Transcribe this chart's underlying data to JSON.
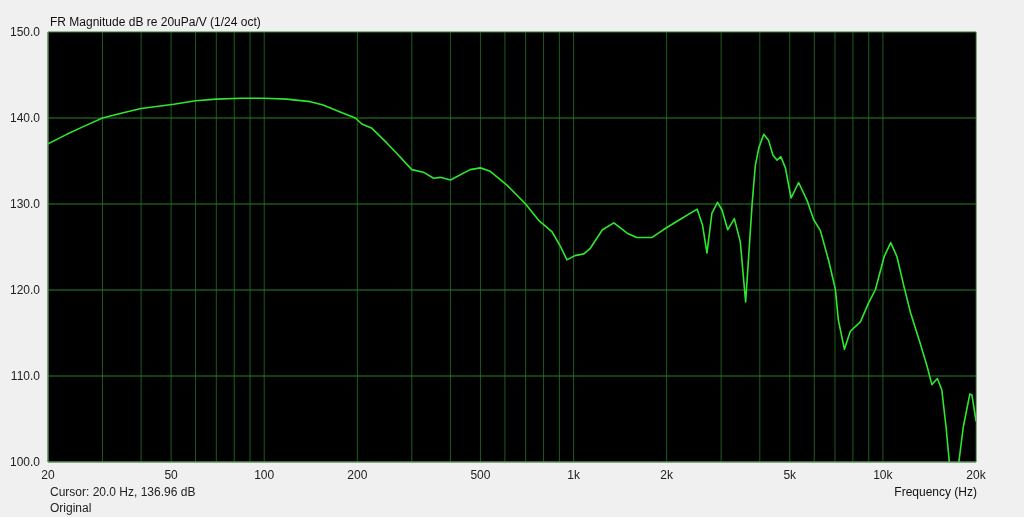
{
  "chart_data": {
    "type": "line",
    "title": "FR Magnitude dB re 20uPa/V (1/24 oct)",
    "xlabel": "Frequency (Hz)",
    "annotations": [
      "Cursor: 20.0 Hz, 136.96 dB",
      "Original"
    ],
    "x": [
      20,
      23,
      26,
      30,
      35,
      40,
      51,
      60,
      70,
      84,
      100,
      118,
      141,
      155,
      176,
      197,
      207,
      223,
      249,
      268,
      300,
      327,
      353,
      371,
      400,
      463,
      500,
      538,
      609,
      700,
      771,
      851,
      906,
      952,
      1010,
      1080,
      1130,
      1240,
      1350,
      1490,
      1600,
      1790,
      1950,
      2160,
      2510,
      2610,
      2700,
      2800,
      2920,
      3020,
      3150,
      3310,
      3460,
      3600,
      3780,
      3870,
      3970,
      4120,
      4270,
      4410,
      4550,
      4680,
      4840,
      5050,
      5340,
      5690,
      5970,
      6280,
      6680,
      7020,
      7180,
      7510,
      7850,
      8460,
      8990,
      9450,
      10100,
      10600,
      11100,
      11700,
      12300,
      13200,
      13900,
      14400,
      15000,
      15500,
      16000,
      16400,
      17000,
      17600,
      18200,
      19100,
      19400,
      20000
    ],
    "series": [
      {
        "color": "#2ee82e",
        "values": [
          137.0,
          138.1,
          139.0,
          140.0,
          140.6,
          141.1,
          141.6,
          142.0,
          142.2,
          142.3,
          142.3,
          142.2,
          141.9,
          141.5,
          140.7,
          140.0,
          139.3,
          138.8,
          137.1,
          135.9,
          134.0,
          133.7,
          133.0,
          133.1,
          132.8,
          134.0,
          134.2,
          133.8,
          132.2,
          130.0,
          128.1,
          126.8,
          125.1,
          123.5,
          124.0,
          124.2,
          124.8,
          127.0,
          127.8,
          126.6,
          126.1,
          126.1,
          127.0,
          128.0,
          129.4,
          127.6,
          124.3,
          128.9,
          130.2,
          129.3,
          127.0,
          128.3,
          125.6,
          118.6,
          130.1,
          134.5,
          136.5,
          138.1,
          137.4,
          135.7,
          135.1,
          135.5,
          134.2,
          130.7,
          132.5,
          130.4,
          128.2,
          126.9,
          123.4,
          120.1,
          116.5,
          113.1,
          115.2,
          116.3,
          118.5,
          120.0,
          123.9,
          125.5,
          123.9,
          120.4,
          117.3,
          113.8,
          111.1,
          109.0,
          109.7,
          108.4,
          104.1,
          100.0,
          null,
          100.0,
          104.1,
          107.9,
          107.8,
          104.8
        ]
      }
    ],
    "xlim": [
      20,
      20000
    ],
    "ylim": [
      100,
      150
    ],
    "xticks": [
      20,
      {
        "value": 30,
        "label": null
      },
      {
        "value": 40,
        "label": null
      },
      50,
      {
        "value": 60,
        "label": null
      },
      {
        "value": 70,
        "label": null
      },
      {
        "value": 80,
        "label": null
      },
      {
        "value": 90,
        "label": null
      },
      100,
      200,
      {
        "value": 300,
        "label": null
      },
      {
        "value": 400,
        "label": null
      },
      500,
      {
        "value": 600,
        "label": null
      },
      {
        "value": 700,
        "label": null
      },
      {
        "value": 800,
        "label": null
      },
      {
        "value": 900,
        "label": null
      },
      {
        "value": 1000,
        "label": "1k"
      },
      {
        "value": 2000,
        "label": "2k"
      },
      {
        "value": 3000,
        "label": null
      },
      {
        "value": 4000,
        "label": null
      },
      {
        "value": 5000,
        "label": "5k"
      },
      {
        "value": 6000,
        "label": null
      },
      {
        "value": 7000,
        "label": null
      },
      {
        "value": 8000,
        "label": null
      },
      {
        "value": 9000,
        "label": null
      },
      {
        "value": 10000,
        "label": "10k"
      },
      {
        "value": 20000,
        "label": "20k"
      }
    ],
    "yticks": [
      {
        "value": 100,
        "label": "100.0"
      },
      {
        "value": 110,
        "label": "110.0"
      },
      {
        "value": 120,
        "label": "120.0"
      },
      {
        "value": 130,
        "label": "130.0"
      },
      {
        "value": 140,
        "label": "140.0"
      },
      {
        "value": 150,
        "label": "150.0"
      }
    ],
    "log": "x",
    "grid": true,
    "marker": "none",
    "line_style": "solid"
  }
}
